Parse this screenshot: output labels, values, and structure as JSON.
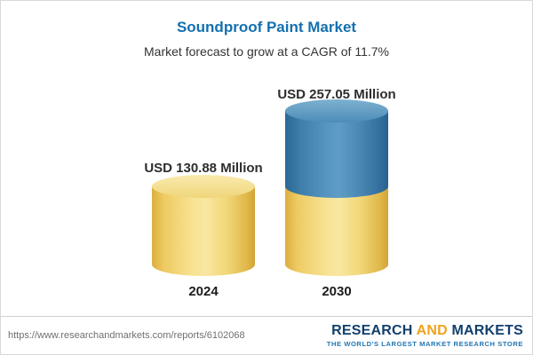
{
  "header": {
    "title": "Soundproof Paint Market",
    "subtitle": "Market forecast to grow at a CAGR of 11.7%"
  },
  "chart_data": {
    "type": "bar",
    "style": "3d-cylinder-stacked",
    "title": "Soundproof Paint Market",
    "subtitle": "Market forecast to grow at a CAGR of 11.7%",
    "categories": [
      "2024",
      "2030"
    ],
    "values": [
      130.88,
      257.05
    ],
    "unit": "USD Million",
    "value_labels": [
      "USD 130.88 Million",
      "USD 257.05 Million"
    ],
    "cagr_percent": 11.7,
    "legend": "none",
    "grid": "off",
    "colors": {
      "base_segment": "#F2D879",
      "growth_segment": "#4B89B4",
      "title_text": "#1470B0"
    }
  },
  "footer": {
    "url": "https://www.researchandmarkets.com/reports/6102068",
    "logo": {
      "word_research": "RESEARCH",
      "word_and": "AND",
      "word_markets": "MARKETS",
      "tagline": "THE WORLD'S LARGEST MARKET RESEARCH STORE"
    }
  }
}
